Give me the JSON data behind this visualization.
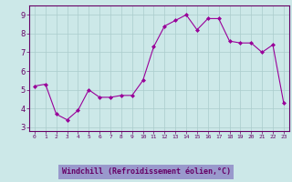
{
  "x": [
    0,
    1,
    2,
    3,
    4,
    5,
    6,
    7,
    8,
    9,
    10,
    11,
    12,
    13,
    14,
    15,
    16,
    17,
    18,
    19,
    20,
    21,
    22,
    23
  ],
  "y": [
    5.2,
    5.3,
    3.7,
    3.4,
    3.9,
    5.0,
    4.6,
    4.6,
    4.7,
    4.7,
    5.5,
    7.3,
    8.4,
    8.7,
    9.0,
    8.2,
    8.8,
    8.8,
    7.6,
    7.5,
    7.5,
    7.0,
    7.4,
    4.3
  ],
  "line_color": "#990099",
  "marker": "D",
  "marker_size": 2,
  "bg_color": "#cce8e8",
  "grid_color": "#aacccc",
  "xlabel": "Windchill (Refroidissement éolien,°C)",
  "xlabel_color": "#660066",
  "xlabel_bg": "#9999cc",
  "yticks": [
    3,
    4,
    5,
    6,
    7,
    8,
    9
  ],
  "xticks": [
    0,
    1,
    2,
    3,
    4,
    5,
    6,
    7,
    8,
    9,
    10,
    11,
    12,
    13,
    14,
    15,
    16,
    17,
    18,
    19,
    20,
    21,
    22,
    23
  ],
  "xlim": [
    -0.5,
    23.5
  ],
  "ylim": [
    2.8,
    9.5
  ],
  "tick_color": "#660066",
  "spine_color": "#660066"
}
